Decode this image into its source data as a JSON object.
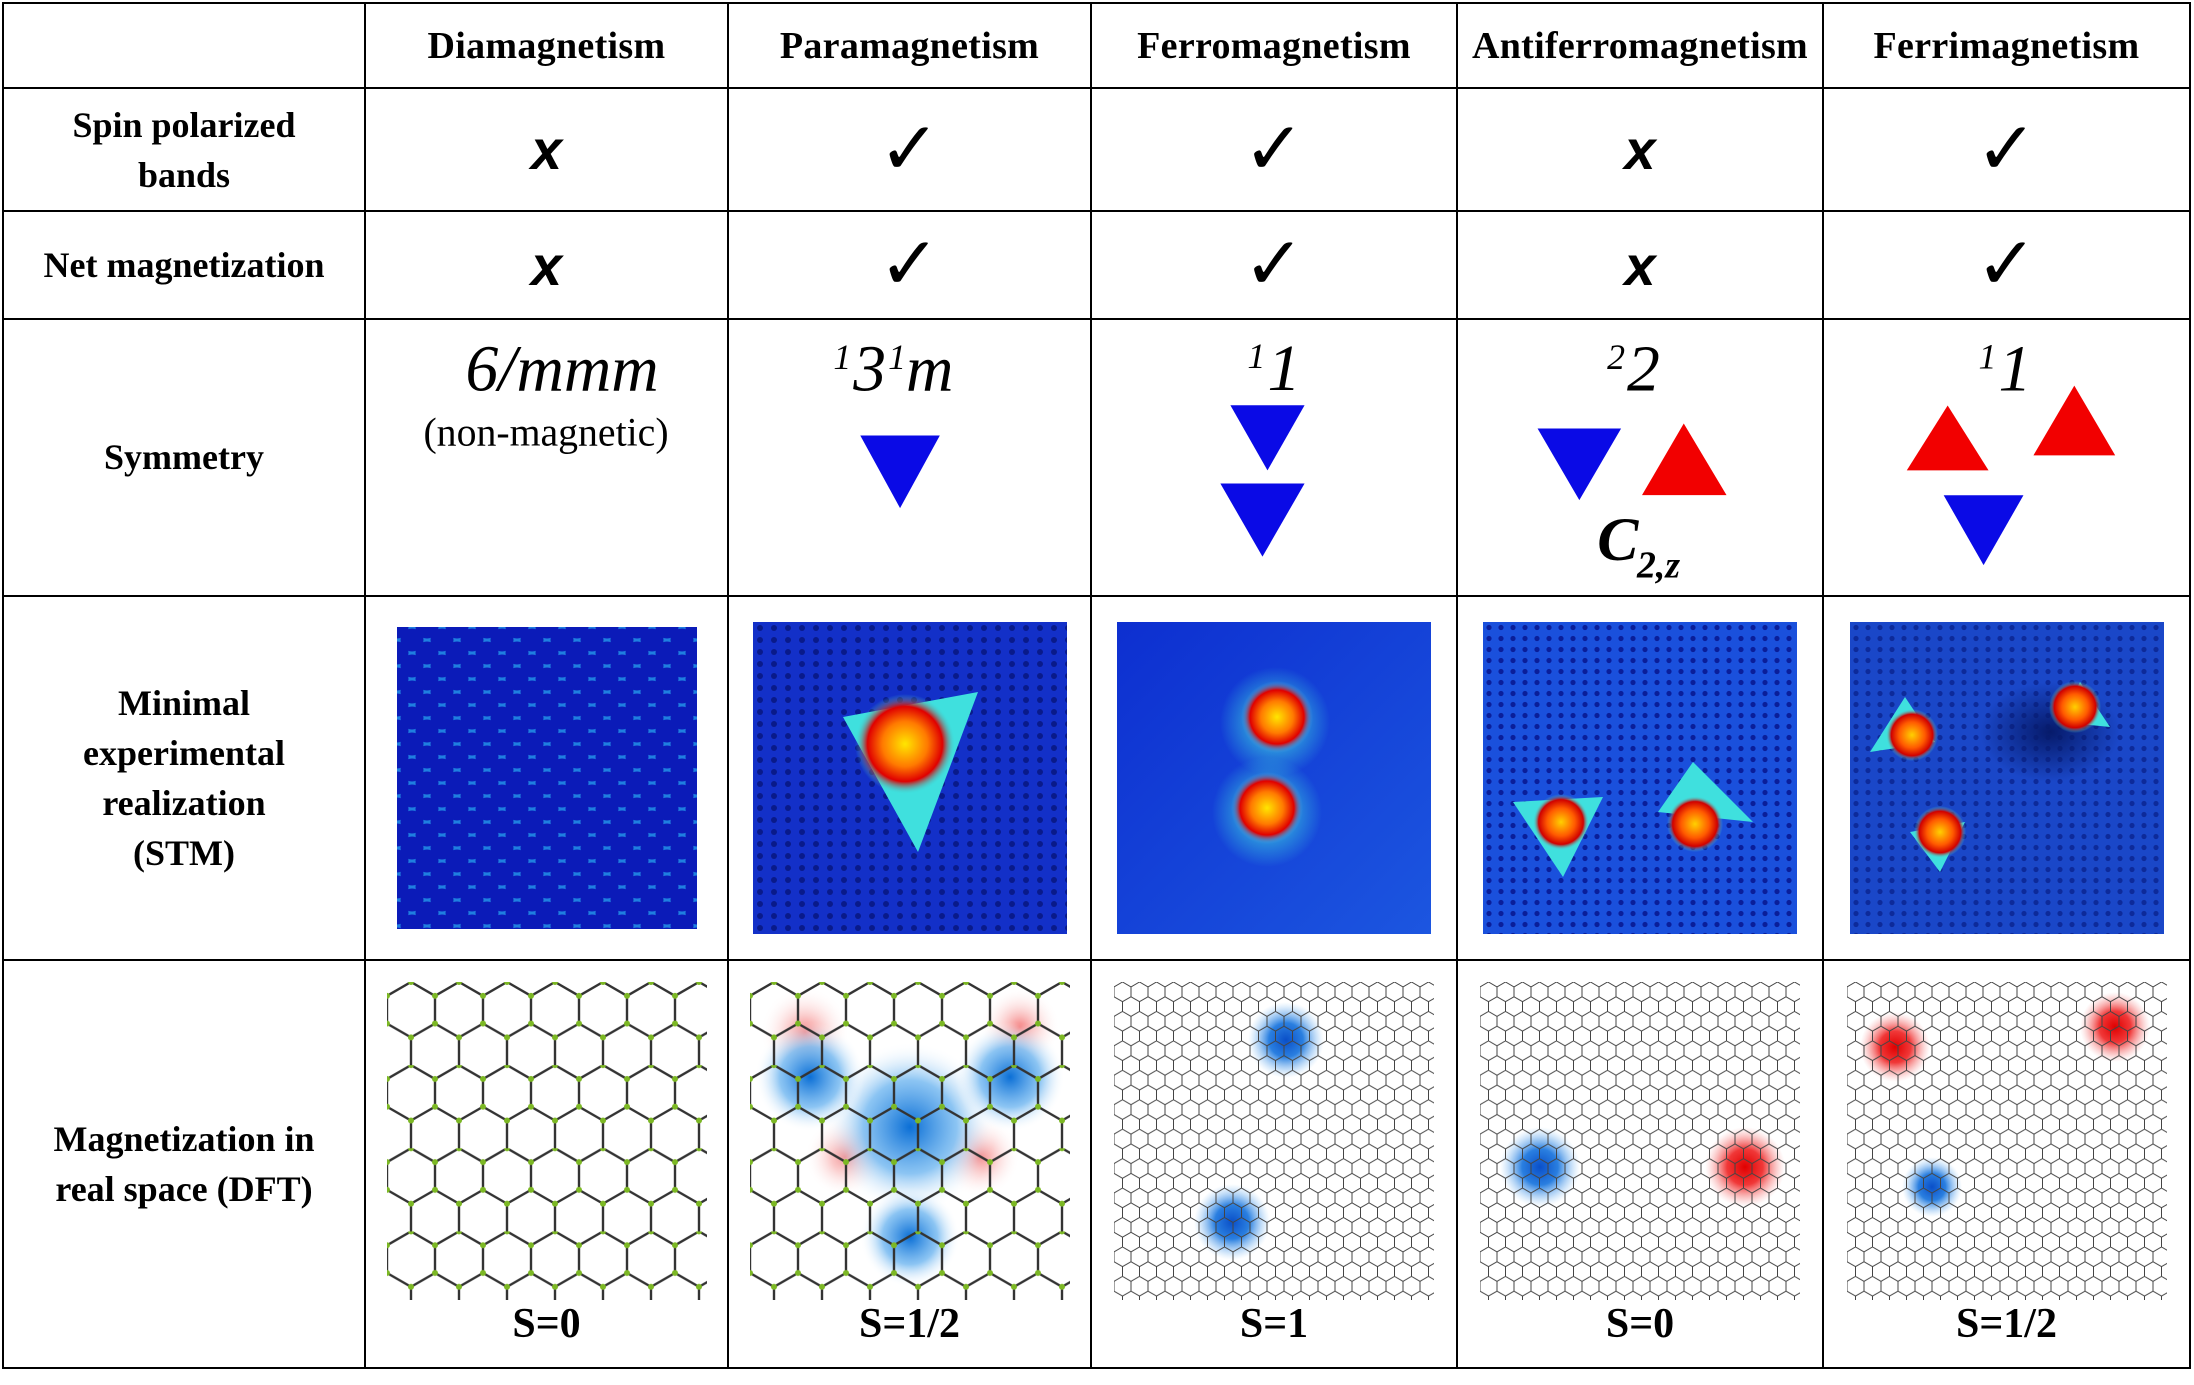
{
  "columns": [
    "Diamagnetism",
    "Paramagnetism",
    "Ferromagnetism",
    "Antiferromagnetism",
    "Ferrimagnetism"
  ],
  "rows": {
    "spin_polarized": "Spin polarized bands",
    "net_magnetization": "Net magnetization",
    "symmetry": "Symmetry",
    "stm": "Minimal experimental realization (STM)",
    "dft": "Magnetization in real space (DFT)"
  },
  "checks": {
    "spin_polarized": [
      "x",
      "✓",
      "✓",
      "x",
      "✓"
    ],
    "net_magnetization": [
      "x",
      "✓",
      "✓",
      "x",
      "✓"
    ]
  },
  "symmetry": {
    "dia": {
      "label": "6/mmm",
      "note": "(non-magnetic)"
    },
    "para": {
      "sup1": "1",
      "main1": "3",
      "sup2": "1",
      "main2": "m"
    },
    "ferro": {
      "sup": "1",
      "main": "1"
    },
    "antiferro": {
      "sup": "2",
      "main": "2",
      "op_main": "C",
      "op_sub": "2,z"
    },
    "ferri": {
      "sup": "1",
      "main": "1"
    }
  },
  "spins": [
    "S=0",
    "S=1/2",
    "S=1",
    "S=0",
    "S=1/2"
  ],
  "colors": {
    "up": "#f20000",
    "down": "#0a0ae6",
    "border": "#000000"
  },
  "icons": [
    "check-icon",
    "x-icon",
    "triangle-up-red",
    "triangle-down-blue"
  ]
}
